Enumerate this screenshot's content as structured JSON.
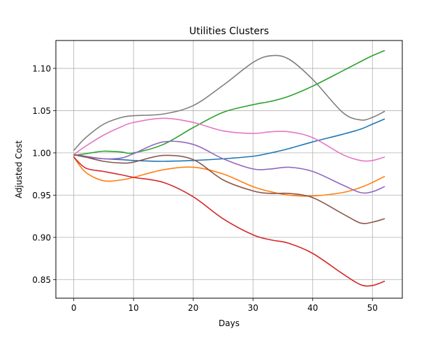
{
  "chart_data": {
    "type": "line",
    "title": "Utilities Clusters",
    "xlabel": "Days",
    "ylabel": "Adjusted Cost",
    "xlim": [
      -3,
      55
    ],
    "ylim": [
      0.828,
      1.133
    ],
    "xticks": [
      0,
      10,
      20,
      30,
      40,
      50
    ],
    "yticks": [
      0.85,
      0.9,
      0.95,
      1.0,
      1.05,
      1.1
    ],
    "xtick_labels": [
      "0",
      "10",
      "20",
      "30",
      "40",
      "50"
    ],
    "ytick_labels": [
      "0.85",
      "0.90",
      "0.95",
      "1.00",
      "1.05",
      "1.10"
    ],
    "grid": true,
    "x": [
      0,
      2,
      5,
      8,
      10,
      15,
      20,
      25,
      30,
      33,
      36,
      40,
      45,
      48,
      50,
      52
    ],
    "series": [
      {
        "color": "#1f77b4",
        "values": [
          0.998,
          0.995,
          0.993,
          0.992,
          0.991,
          0.99,
          0.991,
          0.993,
          0.996,
          1.0,
          1.005,
          1.013,
          1.022,
          1.028,
          1.034,
          1.04
        ]
      },
      {
        "color": "#ff7f0e",
        "values": [
          0.995,
          0.977,
          0.967,
          0.968,
          0.971,
          0.98,
          0.983,
          0.975,
          0.96,
          0.954,
          0.95,
          0.949,
          0.953,
          0.959,
          0.965,
          0.972
        ]
      },
      {
        "color": "#2ca02c",
        "values": [
          0.997,
          0.999,
          1.002,
          1.001,
          1.0,
          1.01,
          1.03,
          1.048,
          1.057,
          1.061,
          1.067,
          1.079,
          1.097,
          1.108,
          1.115,
          1.121
        ]
      },
      {
        "color": "#d62728",
        "values": [
          0.995,
          0.982,
          0.978,
          0.974,
          0.971,
          0.965,
          0.948,
          0.922,
          0.903,
          0.897,
          0.893,
          0.881,
          0.857,
          0.844,
          0.843,
          0.848
        ]
      },
      {
        "color": "#9467bd",
        "values": [
          0.998,
          0.996,
          0.993,
          0.994,
          0.999,
          1.013,
          1.01,
          0.993,
          0.981,
          0.981,
          0.983,
          0.978,
          0.962,
          0.953,
          0.954,
          0.96
        ]
      },
      {
        "color": "#8c564b",
        "values": [
          0.998,
          0.995,
          0.99,
          0.988,
          0.989,
          0.997,
          0.992,
          0.968,
          0.955,
          0.952,
          0.952,
          0.947,
          0.928,
          0.917,
          0.918,
          0.922
        ]
      },
      {
        "color": "#e377c2",
        "values": [
          0.998,
          1.008,
          1.021,
          1.031,
          1.036,
          1.041,
          1.036,
          1.026,
          1.023,
          1.025,
          1.025,
          1.018,
          0.998,
          0.991,
          0.991,
          0.995
        ]
      },
      {
        "color": "#7f7f7f",
        "values": [
          1.003,
          1.018,
          1.034,
          1.042,
          1.044,
          1.046,
          1.056,
          1.08,
          1.107,
          1.115,
          1.111,
          1.087,
          1.048,
          1.039,
          1.042,
          1.049
        ]
      }
    ]
  }
}
